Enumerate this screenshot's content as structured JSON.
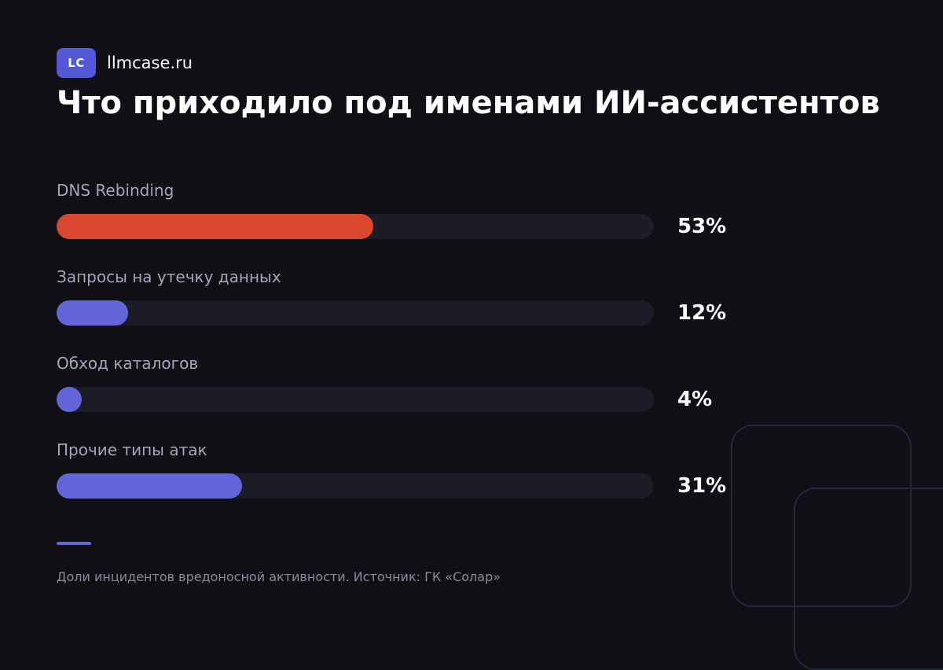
{
  "brand": {
    "badge": "LC",
    "name": "llmcase.ru"
  },
  "chart_data": {
    "type": "bar",
    "orientation": "horizontal",
    "title": "Что приходило под именами ИИ-ассистентов",
    "categories": [
      "DNS Rebinding",
      "Запросы на утечку данных",
      "Обход каталогов",
      "Прочие типы атак"
    ],
    "values": [
      53,
      12,
      4,
      31
    ],
    "value_labels": [
      "53%",
      "12%",
      "4%",
      "31%"
    ],
    "ylim": [
      0,
      100
    ],
    "unit": "%",
    "grid": false,
    "colors": [
      "#d9472f",
      "#6366d6",
      "#6366d6",
      "#6366d6"
    ],
    "track_color": "#1b1c26",
    "footnote": "Доли инцидентов вредоносной активности. Источник: ГК «Солар»"
  }
}
